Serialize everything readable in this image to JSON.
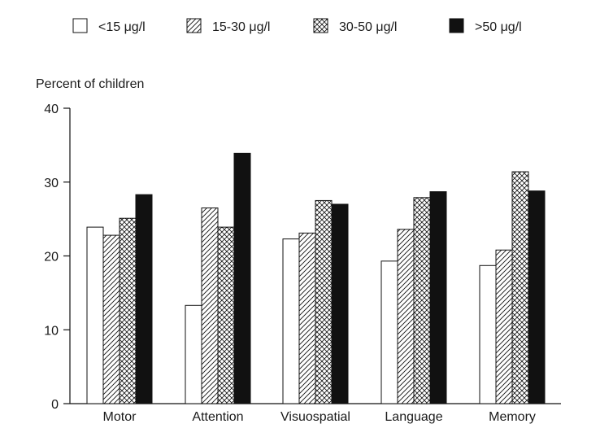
{
  "chart_data": {
    "type": "bar",
    "ylabel": "Percent of children",
    "ylim": [
      0,
      40
    ],
    "yticks": [
      "0",
      "10",
      "20",
      "30",
      "40"
    ],
    "categories": [
      "Motor",
      "Attention",
      "Visuospatial",
      "Language",
      "Memory"
    ],
    "series": [
      {
        "name": "<15 μg/l",
        "pattern": "empty",
        "values": [
          23.9,
          13.3,
          22.3,
          19.3,
          18.7
        ]
      },
      {
        "name": "15-30 μg/l",
        "pattern": "hatch",
        "values": [
          22.8,
          26.5,
          23.1,
          23.6,
          20.8
        ]
      },
      {
        "name": "30-50 μg/l",
        "pattern": "cross",
        "values": [
          25.1,
          23.9,
          27.5,
          27.9,
          31.4
        ]
      },
      {
        "name": ">50 μg/l",
        "pattern": "solid",
        "values": [
          28.3,
          33.9,
          27.0,
          28.7,
          28.8
        ]
      }
    ],
    "legend_position": "top",
    "grid": false,
    "colors": {
      "ink": "#111111",
      "background": "#ffffff"
    }
  }
}
